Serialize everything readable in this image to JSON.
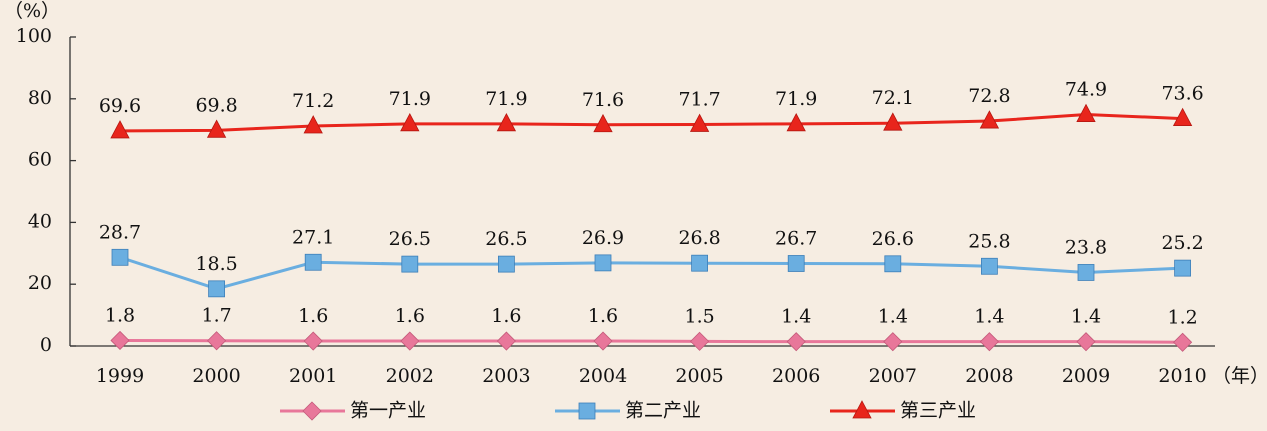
{
  "chart_data": {
    "type": "line",
    "y_label": "（%）",
    "x_label": "（年）",
    "categories": [
      "1999",
      "2000",
      "2001",
      "2002",
      "2003",
      "2004",
      "2005",
      "2006",
      "2007",
      "2008",
      "2009",
      "2010"
    ],
    "series": [
      {
        "name": "第一产业",
        "color": "#e8779a",
        "marker": "diamond",
        "values": [
          1.8,
          1.7,
          1.6,
          1.6,
          1.6,
          1.6,
          1.5,
          1.4,
          1.4,
          1.4,
          1.4,
          1.2
        ]
      },
      {
        "name": "第二产业",
        "color": "#6aaee0",
        "marker": "square",
        "values": [
          28.7,
          18.5,
          27.1,
          26.5,
          26.5,
          26.9,
          26.8,
          26.7,
          26.6,
          25.8,
          23.8,
          25.2
        ]
      },
      {
        "name": "第三产业",
        "color": "#e8251c",
        "marker": "triangle",
        "values": [
          69.6,
          69.8,
          71.2,
          71.9,
          71.9,
          71.6,
          71.7,
          71.9,
          72.1,
          72.8,
          74.9,
          73.6
        ]
      }
    ],
    "ylim": [
      0,
      100
    ],
    "yticks": [
      0,
      20,
      40,
      60,
      80,
      100
    ],
    "grid": false
  }
}
